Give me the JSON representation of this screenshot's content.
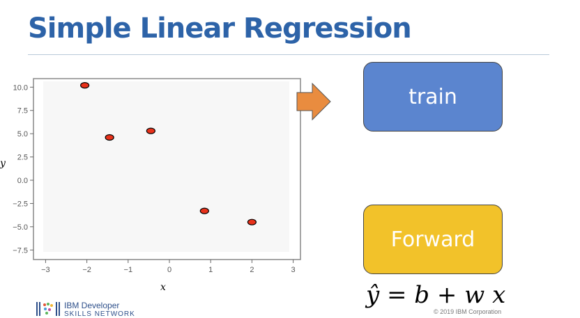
{
  "slide": {
    "title": "Simple Linear Regression",
    "train_label": "train",
    "forward_label": "Forward",
    "equation": "ŷ = b + w x",
    "copyright": "© 2019 IBM Corporation",
    "logo_line1": "IBM Developer",
    "logo_line2": "SKILLS NETWORK"
  },
  "colors": {
    "title": "#2d63a8",
    "train": "#5b85cf",
    "forward": "#f2c22a",
    "arrow": "#e98c3f",
    "point": "#e8311a"
  },
  "chart_data": {
    "type": "scatter",
    "title": "",
    "xlabel": "x",
    "ylabel": "y",
    "xlim": [
      -3.3,
      3.2
    ],
    "ylim": [
      -8.5,
      11
    ],
    "xticks": [
      "−3",
      "−2",
      "−1",
      "0",
      "1",
      "2",
      "3"
    ],
    "yticks": [
      "10.0",
      "7.5",
      "5.0",
      "2.5",
      "0.0",
      "−2.5",
      "−5.0",
      "−7.5"
    ],
    "grid": false,
    "x": [
      -2.05,
      -1.45,
      -0.45,
      0.85,
      2.0
    ],
    "y": [
      10.2,
      4.6,
      5.3,
      -3.3,
      -4.5
    ]
  }
}
